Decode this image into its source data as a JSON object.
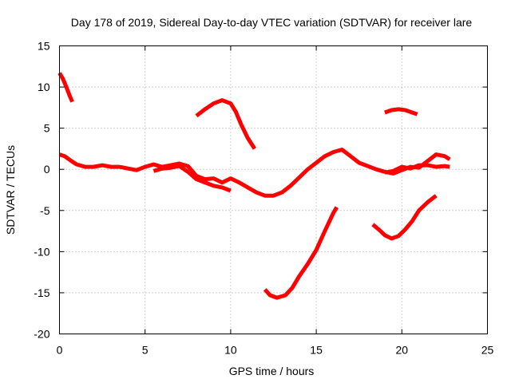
{
  "chart_data": {
    "type": "line",
    "title": "Day 178 of 2019, Sidereal Day-to-day VTEC variation (SDTVAR) for receiver lare",
    "xlabel": "GPS time / hours",
    "ylabel": "SDTVAR / TECUs",
    "xlim": [
      0,
      25
    ],
    "ylim": [
      -20,
      15
    ],
    "xticks": [
      0,
      5,
      10,
      15,
      20,
      25
    ],
    "yticks": [
      -20,
      -15,
      -10,
      -5,
      0,
      5,
      10,
      15
    ],
    "grid": true,
    "color": "#ff0000",
    "series": [
      {
        "name": "arc-1",
        "points": [
          [
            0.0,
            11.7
          ],
          [
            0.2,
            11.0
          ],
          [
            0.4,
            10.0
          ],
          [
            0.6,
            8.9
          ],
          [
            0.75,
            8.2
          ]
        ]
      },
      {
        "name": "arc-2",
        "points": [
          [
            0.0,
            1.8
          ],
          [
            0.3,
            1.6
          ],
          [
            0.7,
            1.0
          ],
          [
            1.0,
            0.6
          ],
          [
            1.5,
            0.3
          ],
          [
            2.0,
            0.3
          ],
          [
            2.5,
            0.5
          ],
          [
            3.0,
            0.3
          ],
          [
            3.5,
            0.3
          ],
          [
            4.0,
            0.1
          ],
          [
            4.5,
            -0.1
          ],
          [
            5.0,
            0.3
          ],
          [
            5.5,
            0.6
          ],
          [
            6.0,
            0.3
          ],
          [
            6.5,
            0.5
          ],
          [
            7.0,
            0.7
          ],
          [
            7.5,
            0.4
          ],
          [
            8.0,
            -0.8
          ],
          [
            8.5,
            -1.2
          ],
          [
            9.0,
            -1.1
          ],
          [
            9.5,
            -1.6
          ],
          [
            10.0,
            -1.1
          ],
          [
            10.5,
            -1.6
          ],
          [
            11.0,
            -2.2
          ],
          [
            11.5,
            -2.8
          ],
          [
            12.0,
            -3.2
          ],
          [
            12.5,
            -3.2
          ],
          [
            13.0,
            -2.8
          ],
          [
            13.5,
            -2.0
          ],
          [
            14.0,
            -1.0
          ],
          [
            14.5,
            0.0
          ],
          [
            15.0,
            0.8
          ],
          [
            15.5,
            1.6
          ],
          [
            16.0,
            2.1
          ],
          [
            16.5,
            2.4
          ],
          [
            17.0,
            1.6
          ],
          [
            17.5,
            0.8
          ],
          [
            18.0,
            0.4
          ],
          [
            18.5,
            0.0
          ],
          [
            19.0,
            -0.3
          ],
          [
            19.5,
            -0.5
          ],
          [
            20.0,
            -0.1
          ],
          [
            20.5,
            0.3
          ],
          [
            21.0,
            0.2
          ],
          [
            21.5,
            1.0
          ],
          [
            22.0,
            1.8
          ],
          [
            22.5,
            1.6
          ],
          [
            22.8,
            1.2
          ]
        ]
      },
      {
        "name": "arc-3",
        "points": [
          [
            5.5,
            -0.2
          ],
          [
            6.0,
            0.1
          ],
          [
            6.5,
            0.2
          ],
          [
            7.0,
            0.4
          ],
          [
            7.5,
            -0.3
          ],
          [
            8.0,
            -1.2
          ],
          [
            8.5,
            -1.6
          ],
          [
            9.0,
            -2.0
          ],
          [
            9.5,
            -2.2
          ],
          [
            10.0,
            -2.6
          ]
        ]
      },
      {
        "name": "arc-4",
        "points": [
          [
            8.0,
            6.5
          ],
          [
            8.5,
            7.3
          ],
          [
            9.0,
            8.0
          ],
          [
            9.5,
            8.4
          ],
          [
            10.0,
            8.0
          ],
          [
            10.3,
            7.0
          ],
          [
            10.6,
            5.5
          ],
          [
            11.0,
            3.8
          ],
          [
            11.4,
            2.5
          ]
        ]
      },
      {
        "name": "arc-5",
        "points": [
          [
            12.0,
            -14.6
          ],
          [
            12.3,
            -15.3
          ],
          [
            12.7,
            -15.6
          ],
          [
            13.2,
            -15.3
          ],
          [
            13.6,
            -14.4
          ],
          [
            14.0,
            -13.0
          ],
          [
            14.5,
            -11.5
          ],
          [
            15.0,
            -9.8
          ],
          [
            15.5,
            -7.5
          ],
          [
            16.0,
            -5.3
          ],
          [
            16.2,
            -4.6
          ]
        ]
      },
      {
        "name": "arc-6",
        "points": [
          [
            18.3,
            -6.7
          ],
          [
            18.7,
            -7.4
          ],
          [
            19.0,
            -8.0
          ],
          [
            19.4,
            -8.4
          ],
          [
            19.8,
            -8.1
          ],
          [
            20.2,
            -7.3
          ],
          [
            20.6,
            -6.3
          ],
          [
            21.0,
            -5.0
          ],
          [
            21.5,
            -4.0
          ],
          [
            22.0,
            -3.2
          ]
        ]
      },
      {
        "name": "arc-7",
        "points": [
          [
            19.0,
            6.9
          ],
          [
            19.4,
            7.2
          ],
          [
            19.8,
            7.3
          ],
          [
            20.2,
            7.2
          ],
          [
            20.6,
            6.9
          ],
          [
            20.9,
            6.7
          ]
        ]
      },
      {
        "name": "arc-8",
        "points": [
          [
            19.0,
            -0.4
          ],
          [
            19.5,
            -0.2
          ],
          [
            20.0,
            0.3
          ],
          [
            20.5,
            0.1
          ],
          [
            21.0,
            0.5
          ],
          [
            21.5,
            0.5
          ],
          [
            22.0,
            0.3
          ],
          [
            22.5,
            0.4
          ],
          [
            22.8,
            0.3
          ]
        ]
      }
    ]
  }
}
